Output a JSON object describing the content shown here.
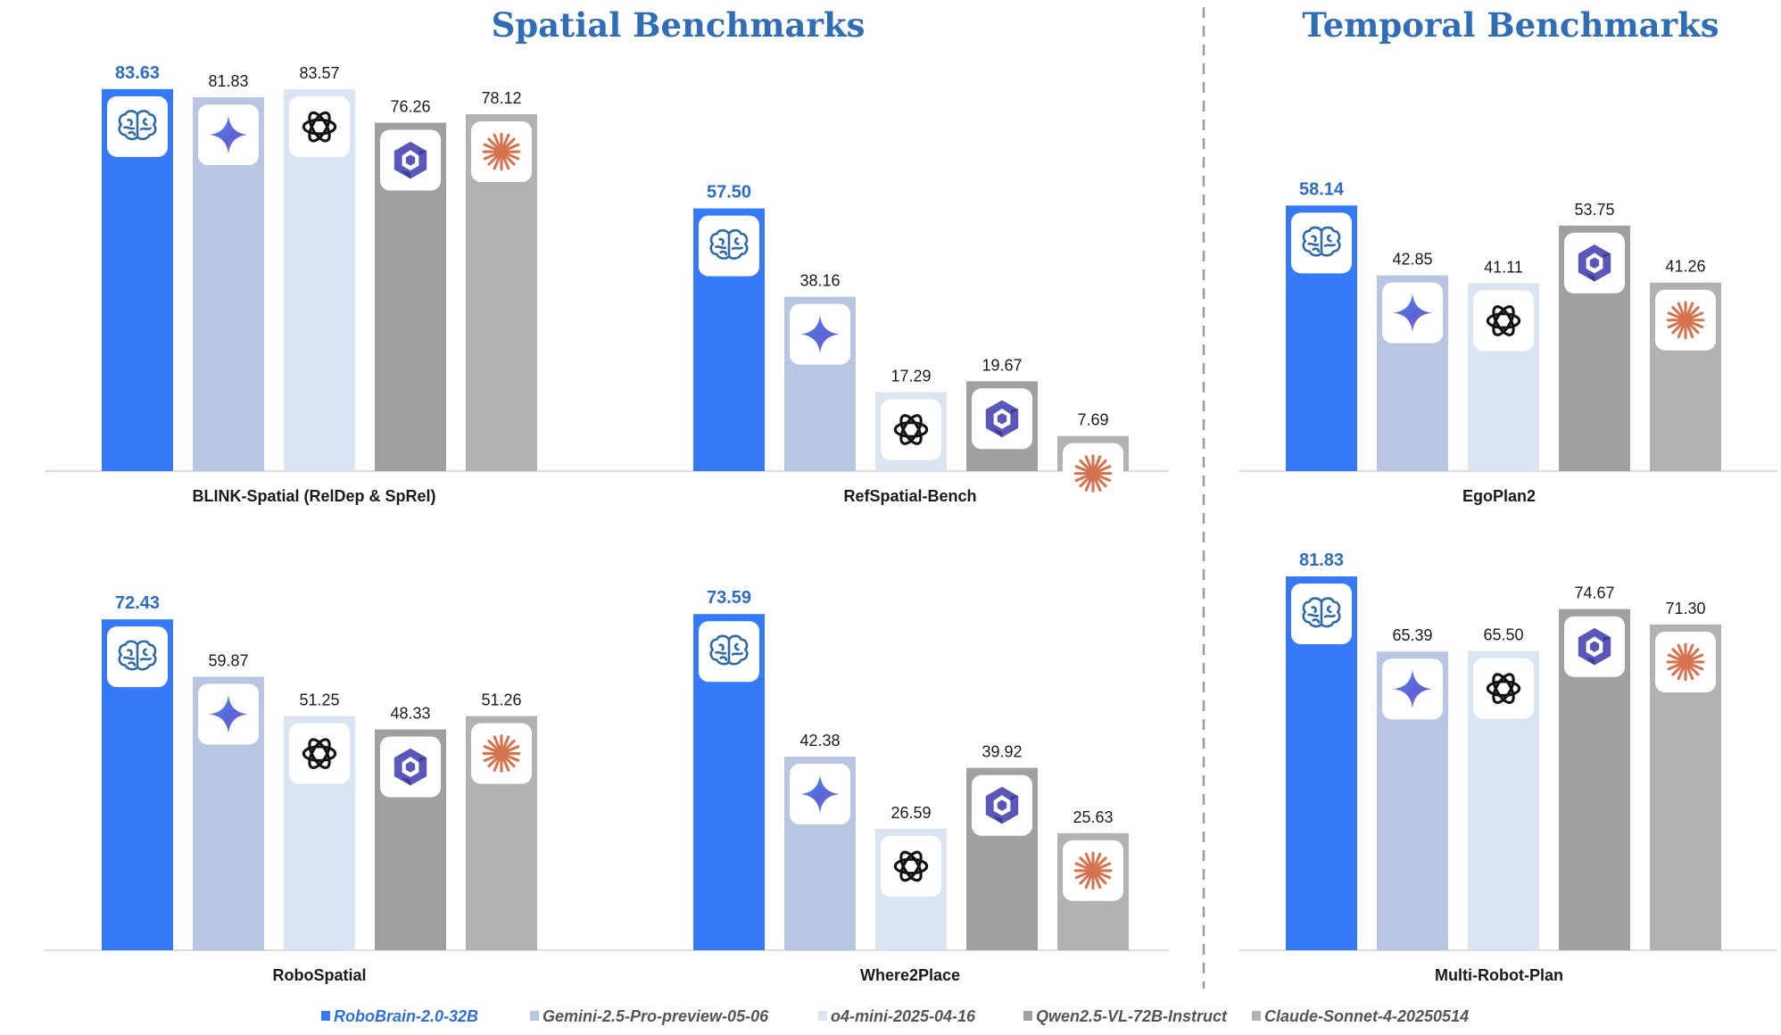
{
  "titles": {
    "spatial": "Spatial Benchmarks",
    "temporal": "Temporal Benchmarks"
  },
  "models": [
    {
      "name": "RoboBrain-2.0-32B",
      "color": "#3579f6",
      "icon": "brain-icon",
      "highlight": true
    },
    {
      "name": "Gemini-2.5-Pro-preview-05-06",
      "color": "#b8c6e4",
      "icon": "gemini-sparkle-icon",
      "highlight": false
    },
    {
      "name": "o4-mini-2025-04-16",
      "color": "#dbe4f2",
      "icon": "openai-knot-icon",
      "highlight": false
    },
    {
      "name": "Qwen2.5-VL-72B-Instruct",
      "color": "#a0a0a0",
      "icon": "qwen-hexagon-icon",
      "highlight": false
    },
    {
      "name": "Claude-Sonnet-4-20250514",
      "color": "#b2b2b2",
      "icon": "claude-starburst-icon",
      "highlight": false
    }
  ],
  "chart_data": [
    {
      "type": "bar",
      "section": "spatial",
      "title": "BLINK-Spatial  (RelDep & SpRel)",
      "values": [
        83.63,
        81.83,
        83.57,
        76.26,
        78.12
      ],
      "labels": [
        "83.63",
        "81.83",
        "83.57",
        "76.26",
        "78.12"
      ],
      "ylim": [
        0,
        100
      ]
    },
    {
      "type": "bar",
      "section": "spatial",
      "title": "RefSpatial-Bench",
      "values": [
        57.5,
        38.16,
        17.29,
        19.67,
        7.69
      ],
      "labels": [
        "57.50",
        "38.16",
        "17.29",
        "19.67",
        "7.69"
      ],
      "ylim": [
        0,
        100
      ]
    },
    {
      "type": "bar",
      "section": "spatial",
      "title": "RoboSpatial",
      "values": [
        72.43,
        59.87,
        51.25,
        48.33,
        51.26
      ],
      "labels": [
        "72.43",
        "59.87",
        "51.25",
        "48.33",
        "51.26"
      ],
      "ylim": [
        0,
        100
      ]
    },
    {
      "type": "bar",
      "section": "spatial",
      "title": "Where2Place",
      "values": [
        73.59,
        42.38,
        26.59,
        39.92,
        25.63
      ],
      "labels": [
        "73.59",
        "42.38",
        "26.59",
        "39.92",
        "25.63"
      ],
      "ylim": [
        0,
        100
      ]
    },
    {
      "type": "bar",
      "section": "temporal",
      "title": "EgoPlan2",
      "values": [
        58.14,
        42.85,
        41.11,
        53.75,
        41.26
      ],
      "labels": [
        "58.14",
        "42.85",
        "41.11",
        "53.75",
        "41.26"
      ],
      "ylim": [
        0,
        100
      ]
    },
    {
      "type": "bar",
      "section": "temporal",
      "title": "Multi-Robot-Plan",
      "values": [
        81.83,
        65.39,
        65.5,
        74.67,
        71.3
      ],
      "labels": [
        "81.83",
        "65.39",
        "65.50",
        "74.67",
        "71.30"
      ],
      "ylim": [
        0,
        100
      ]
    }
  ]
}
